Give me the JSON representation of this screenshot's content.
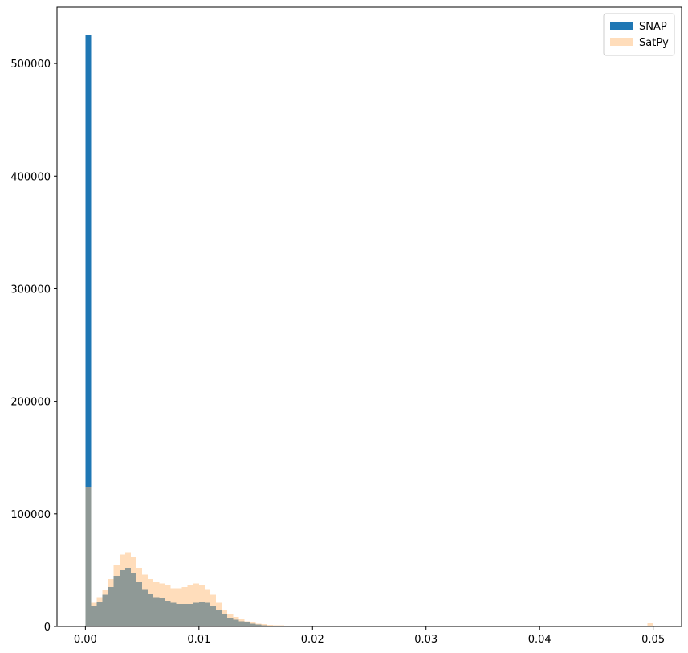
{
  "chart_data": {
    "type": "bar",
    "title": "",
    "xlabel": "",
    "ylabel": "",
    "xlim": [
      -0.0025,
      0.0525
    ],
    "ylim": [
      0,
      550000
    ],
    "xticks": [
      0.0,
      0.01,
      0.02,
      0.03,
      0.04,
      0.05
    ],
    "xtick_labels": [
      "0.00",
      "0.01",
      "0.02",
      "0.03",
      "0.04",
      "0.05"
    ],
    "yticks": [
      0,
      100000,
      200000,
      300000,
      400000,
      500000
    ],
    "ytick_labels": [
      "0",
      "100000",
      "200000",
      "300000",
      "400000",
      "500000"
    ],
    "grid": false,
    "legend_position": "top-right",
    "bin_width": 0.0005,
    "bin_start": 0.0,
    "series": [
      {
        "name": "SNAP",
        "color": "#1f77b4",
        "opacity": 1.0,
        "values": [
          525000,
          18000,
          22000,
          28000,
          35000,
          45000,
          50000,
          52000,
          47000,
          40000,
          33000,
          29000,
          26000,
          25000,
          23000,
          21000,
          20000,
          20000,
          20000,
          21000,
          22000,
          21000,
          18000,
          15000,
          11000,
          8000,
          6000,
          4500,
          3500,
          2500,
          1800,
          1200,
          800,
          500,
          300,
          200,
          100,
          50,
          0,
          0,
          0,
          0,
          0,
          0,
          0,
          0,
          0,
          0,
          0,
          0,
          0,
          0,
          0,
          0,
          0,
          0,
          0,
          0,
          0,
          0,
          0,
          0,
          0,
          0,
          0,
          0,
          0,
          0,
          0,
          0,
          0,
          0,
          0,
          0,
          0,
          0,
          0,
          0,
          0,
          0,
          0,
          0,
          0,
          0,
          0,
          0,
          0,
          0,
          0,
          0,
          0,
          0,
          0,
          0,
          0,
          0,
          0,
          0,
          0,
          0
        ]
      },
      {
        "name": "SatPy",
        "color": "#ffbb78",
        "opacity": 0.5,
        "values": [
          124000,
          21000,
          26000,
          32000,
          42000,
          55000,
          64000,
          66000,
          62000,
          52000,
          46000,
          42000,
          40000,
          38000,
          37000,
          34000,
          34000,
          35000,
          37000,
          38000,
          37000,
          33000,
          28000,
          21000,
          15000,
          11000,
          8500,
          6500,
          4500,
          3500,
          2500,
          2000,
          1500,
          1200,
          1000,
          800,
          700,
          600,
          500,
          450,
          400,
          350,
          300,
          300,
          250,
          250,
          200,
          200,
          150,
          150,
          100,
          100,
          100,
          100,
          0,
          0,
          0,
          0,
          0,
          0,
          0,
          0,
          0,
          0,
          0,
          0,
          0,
          0,
          0,
          0,
          0,
          0,
          0,
          0,
          0,
          0,
          0,
          0,
          0,
          0,
          0,
          0,
          0,
          0,
          0,
          0,
          0,
          0,
          0,
          0,
          0,
          0,
          0,
          0,
          0,
          0,
          0,
          0,
          0,
          3000
        ]
      }
    ]
  }
}
